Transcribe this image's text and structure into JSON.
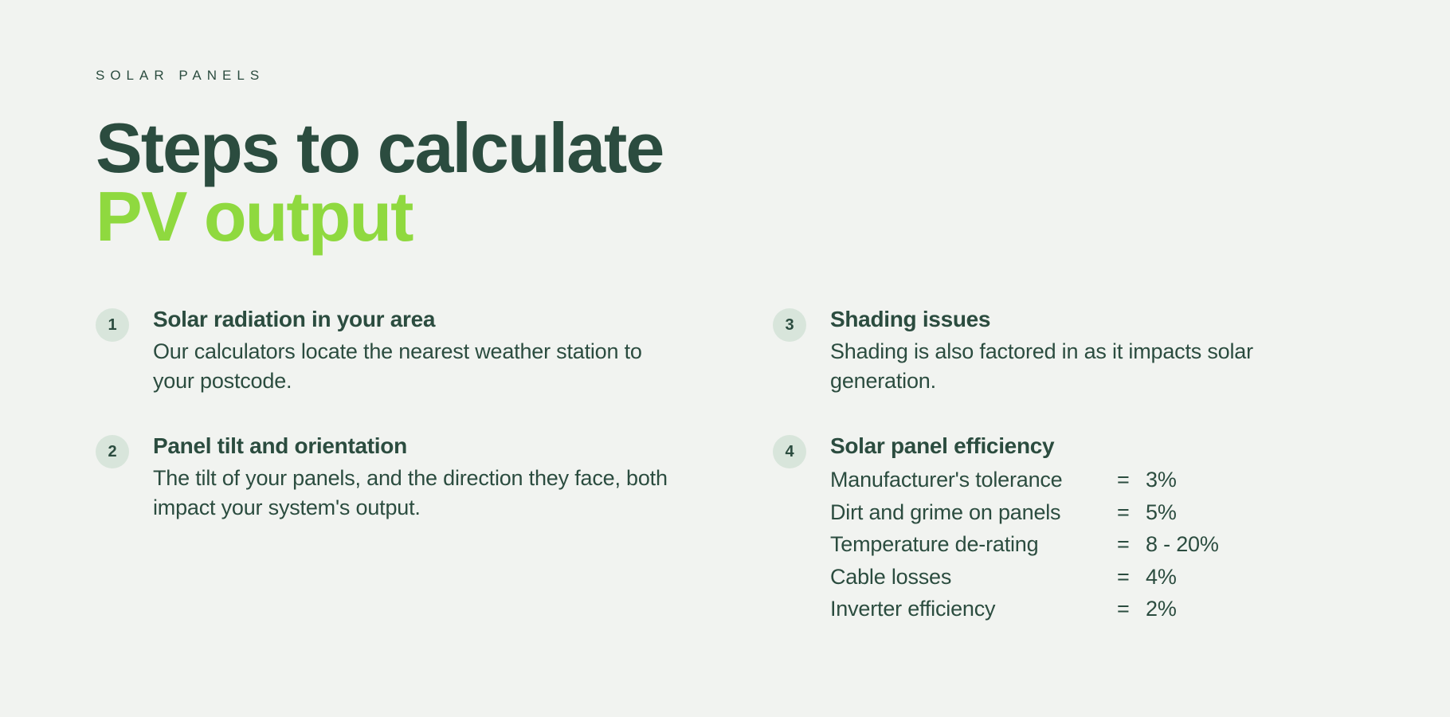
{
  "eyebrow": "SOLAR PANELS",
  "title": {
    "line1": "Steps to calculate",
    "line2": "PV output"
  },
  "colors": {
    "background": "#f1f3f0",
    "text_dark": "#2b4c3f",
    "accent_green": "#8fd93f",
    "badge_bg": "#d8e5db"
  },
  "steps": [
    {
      "num": "1",
      "heading": "Solar radiation in your area",
      "desc": "Our calculators locate the nearest weather station to your postcode."
    },
    {
      "num": "3",
      "heading": "Shading issues",
      "desc": "Shading is also factored in as it impacts solar generation."
    },
    {
      "num": "2",
      "heading": "Panel tilt and orientation",
      "desc": "The tilt of your panels, and the direction they face, both impact your system's output."
    },
    {
      "num": "4",
      "heading": "Solar panel efficiency",
      "efficiency": [
        {
          "label": "Manufacturer's tolerance",
          "eq": "=",
          "val": "3%"
        },
        {
          "label": "Dirt and grime on panels",
          "eq": "=",
          "val": "5%"
        },
        {
          "label": "Temperature de-rating",
          "eq": "=",
          "val": "8  - 20%"
        },
        {
          "label": "Cable losses",
          "eq": "=",
          "val": "4%"
        },
        {
          "label": "Inverter efficiency",
          "eq": "=",
          "val": "2%"
        }
      ]
    }
  ]
}
